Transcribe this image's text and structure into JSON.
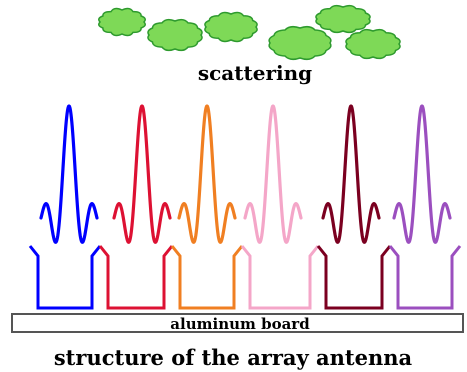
{
  "labels": {
    "scattering": "scattering",
    "board": "aluminum board",
    "caption": "structure of the array antenna"
  },
  "colors": {
    "cloud_fill": "#7ed957",
    "cloud_stroke": "#2e9a2e",
    "board_fill": "#ffffff",
    "board_stroke": "#555555"
  },
  "elements": [
    {
      "name": "blue",
      "color": "#0000ff"
    },
    {
      "name": "red",
      "color": "#dd1133"
    },
    {
      "name": "orange",
      "color": "#f07f22"
    },
    {
      "name": "pink",
      "color": "#f4a6c8"
    },
    {
      "name": "dark-red",
      "color": "#7b0020"
    },
    {
      "name": "purple",
      "color": "#9b4fbf"
    }
  ],
  "clouds": [
    {
      "name": "cloud-1"
    },
    {
      "name": "cloud-2"
    },
    {
      "name": "cloud-3"
    },
    {
      "name": "cloud-4"
    },
    {
      "name": "cloud-5"
    },
    {
      "name": "cloud-6"
    }
  ]
}
